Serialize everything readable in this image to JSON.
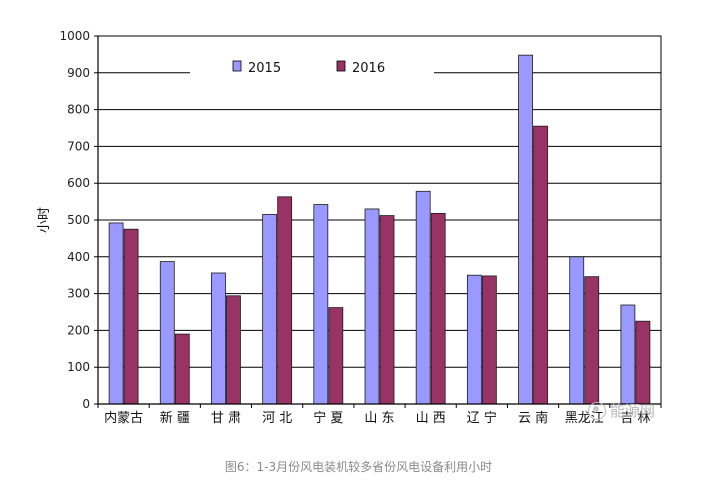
{
  "chart_data": {
    "type": "bar",
    "categories": [
      "内蒙古",
      "新 疆",
      "甘 肃",
      "河 北",
      "宁 夏",
      "山 东",
      "山 西",
      "辽 宁",
      "云 南",
      "黑龙江",
      "吉 林"
    ],
    "series": [
      {
        "name": "2015",
        "color": "#9999ff",
        "values": [
          492,
          387,
          356,
          515,
          542,
          530,
          578,
          350,
          948,
          400,
          269
        ]
      },
      {
        "name": "2016",
        "color": "#993366",
        "values": [
          475,
          190,
          294,
          563,
          262,
          512,
          518,
          348,
          755,
          346,
          225
        ]
      }
    ],
    "ylabel": "小时",
    "ylim": [
      0,
      1000
    ],
    "yticks": [
      "0",
      "100",
      "200",
      "300",
      "400",
      "500",
      "600",
      "700",
      "800",
      "900",
      "1000"
    ],
    "grid": true,
    "legend_position": "top-center"
  },
  "caption": "图6：1-3月份风电装机较多省份风电设备利用小时",
  "watermark": "能源网"
}
